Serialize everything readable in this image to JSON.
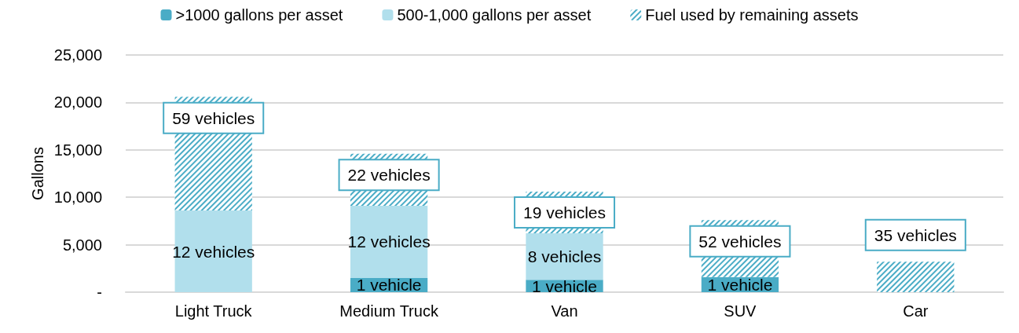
{
  "chart_data": {
    "type": "bar",
    "stacked": true,
    "ylabel": "Gallons",
    "categories": [
      "Light Truck",
      "Medium Truck",
      "Van",
      "SUV",
      "Car"
    ],
    "series": [
      {
        "name": ">1000 gallons per asset",
        "color": "#4aacc6",
        "values": [
          0,
          1500,
          1300,
          1600,
          0
        ]
      },
      {
        "name": "500-1,000 gallons per asset",
        "color": "#b1dfec",
        "values": [
          8600,
          7600,
          4900,
          0,
          0
        ]
      },
      {
        "name": "Fuel used by remaining assets",
        "color": "#4aacc6",
        "values": [
          12000,
          5500,
          4400,
          6000,
          3200
        ]
      }
    ],
    "annotations": [
      "59 vehicles",
      "12 vehicles",
      "22 vehicles",
      "12 vehicles",
      "1 vehicle",
      "19 vehicles",
      "8 vehicles",
      "1 vehicle",
      "52 vehicles",
      "1 vehicle",
      "35 vehicles"
    ],
    "ylim": [
      0,
      25000
    ],
    "yticks": [
      {
        "value": 0,
        "label": "-"
      },
      {
        "value": 5000,
        "label": "5,000"
      },
      {
        "value": 10000,
        "label": "10,000"
      },
      {
        "value": 15000,
        "label": "15,000"
      },
      {
        "value": 20000,
        "label": "20,000"
      },
      {
        "value": 25000,
        "label": "25,000"
      }
    ],
    "grid": "y",
    "legend": "top"
  }
}
